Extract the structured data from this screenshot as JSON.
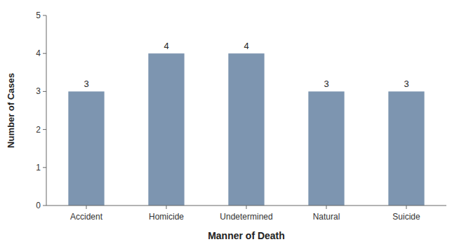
{
  "chart_data": {
    "type": "bar",
    "categories": [
      "Accident",
      "Homicide",
      "Undetermined",
      "Natural",
      "Suicide"
    ],
    "values": [
      3,
      4,
      4,
      3,
      3
    ],
    "color": "#7d95b0",
    "xlabel": "Manner of Death",
    "ylabel": "Number of Cases",
    "ylim": [
      0,
      5
    ],
    "yticks": [
      0,
      1,
      2,
      3,
      4,
      5
    ],
    "grid": false,
    "data_labels": true
  }
}
